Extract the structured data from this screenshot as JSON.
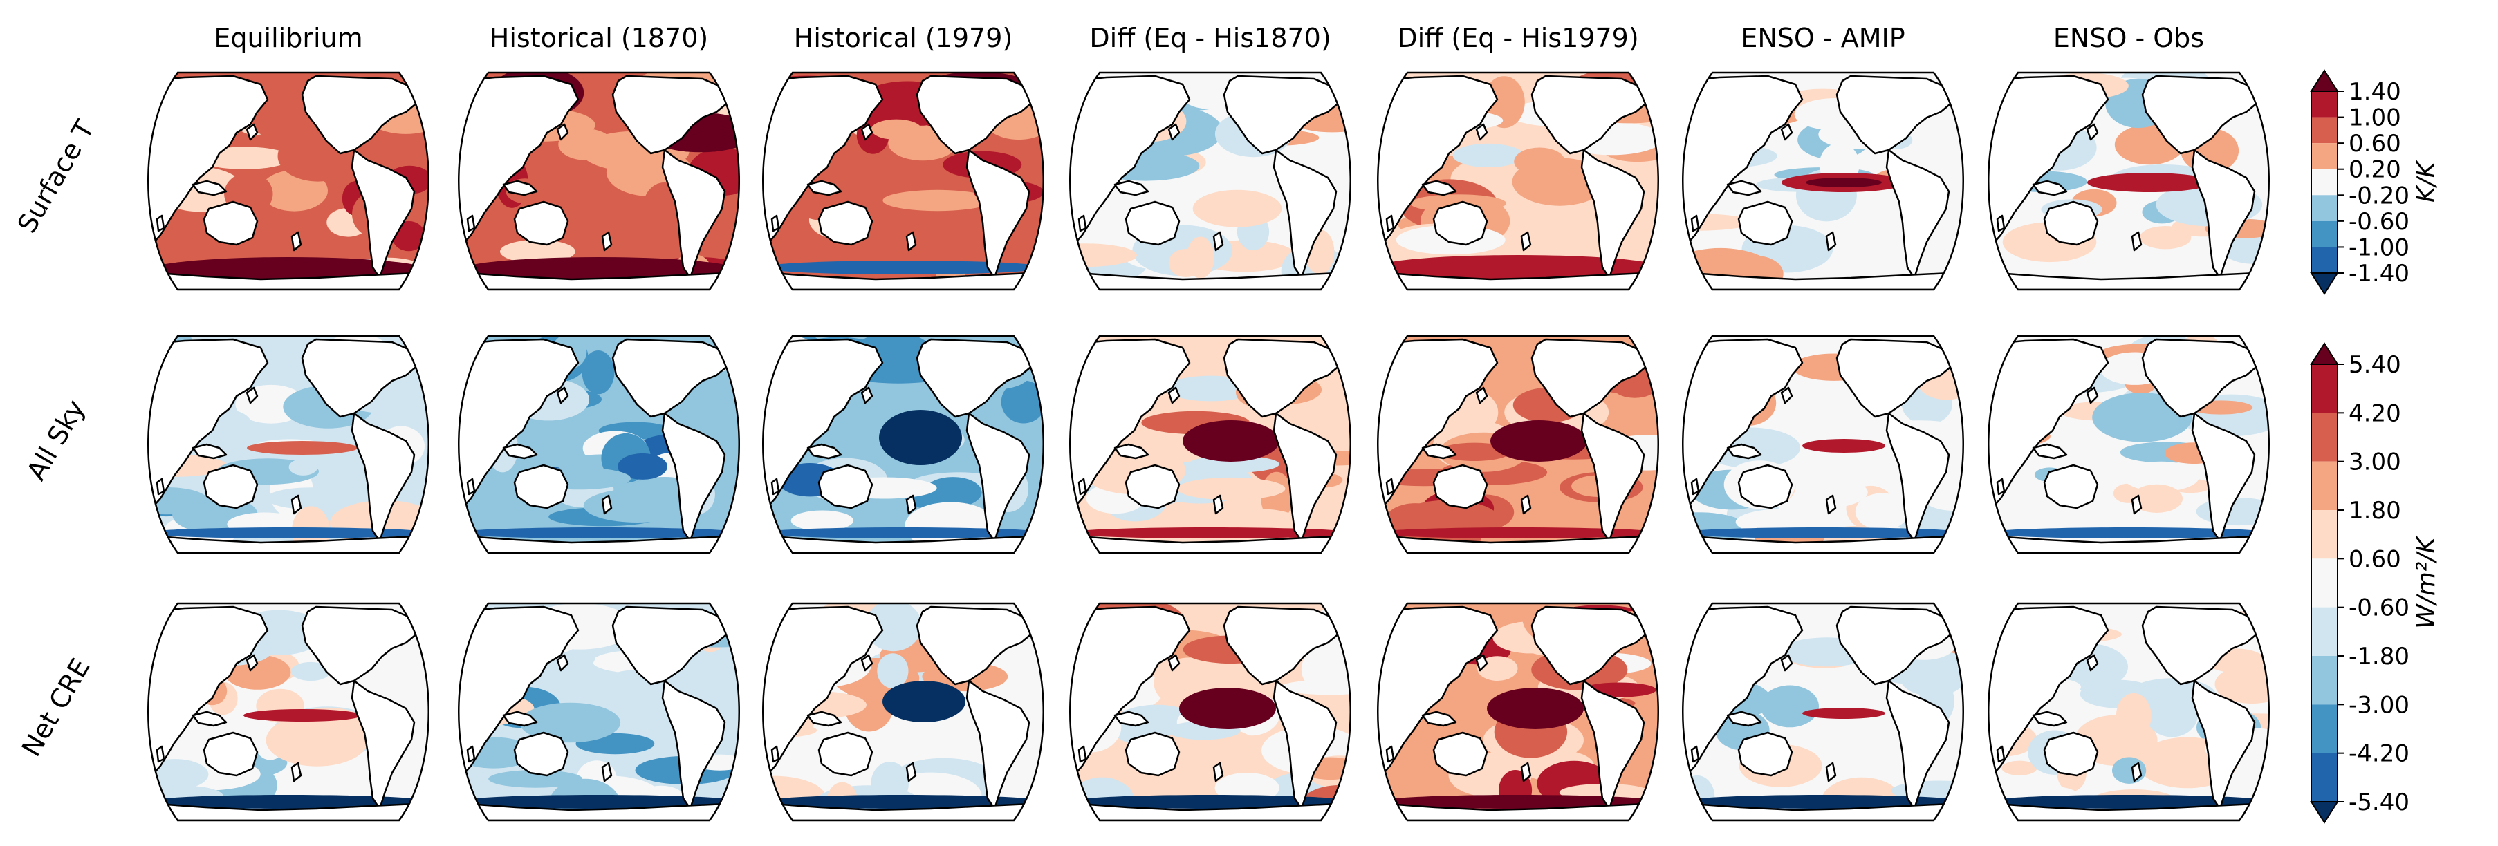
{
  "figure": {
    "columns": [
      "Equilibrium",
      "Historical (1870)",
      "Historical (1979)",
      "Diff (Eq - His1870)",
      "Diff (Eq - His1979)",
      "ENSO - AMIP",
      "ENSO - Obs"
    ],
    "rows": [
      "Surface T",
      "All Sky",
      "Net CRE"
    ]
  },
  "colorbars": [
    {
      "label": "K/K",
      "ticks": [
        "1.40",
        "1.00",
        "0.60",
        "0.20",
        "-0.20",
        "-0.60",
        "-1.00",
        "-1.40"
      ],
      "extend": "both"
    },
    {
      "label": "W/m²/K",
      "ticks": [
        "5.40",
        "4.20",
        "3.00",
        "1.80",
        "0.60",
        "-0.60",
        "-1.80",
        "-3.00",
        "-4.20",
        "-5.40"
      ],
      "extend": "both"
    }
  ],
  "colors": {
    "scale_cold_to_warm": [
      "#053061",
      "#2166ac",
      "#4393c3",
      "#92c5de",
      "#d1e5f0",
      "#f7f7f7",
      "#fddbc7",
      "#f4a582",
      "#d6604d",
      "#b2182b",
      "#67001f"
    ],
    "land": "#ffffff",
    "coastline": "#000000"
  },
  "map": {
    "projection": "Robinson, Pacific-centered",
    "land_mask": "white continents with black coastlines"
  }
}
